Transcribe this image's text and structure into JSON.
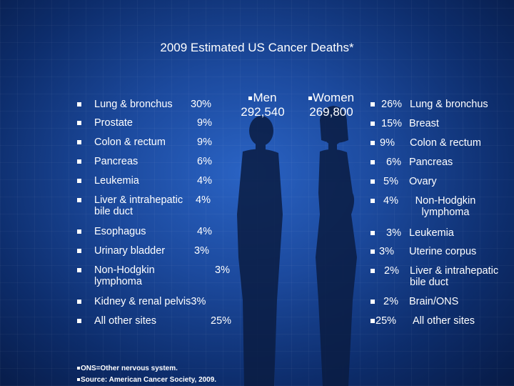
{
  "title": "2009 Estimated US Cancer Deaths*",
  "men": {
    "label": "Men",
    "total": "292,540",
    "rows": [
      {
        "site": "Lung & bronchus",
        "pct": "30%"
      },
      {
        "site": "Prostate",
        "pct": "9%"
      },
      {
        "site": "Colon & rectum",
        "pct": "9%"
      },
      {
        "site": "Pancreas",
        "pct": "6%"
      },
      {
        "site": "Leukemia",
        "pct": "4%"
      },
      {
        "site": "Liver & intrahepatic bile duct",
        "pct": "4%"
      },
      {
        "site": "Esophagus",
        "pct": "4%"
      },
      {
        "site": "Urinary bladder",
        "pct": "3%"
      },
      {
        "site": "Non-Hodgkin lymphoma",
        "pct": "3%"
      },
      {
        "site": "Kidney & renal pelvis",
        "pct": "3%"
      },
      {
        "site": "All other sites",
        "pct": "25%"
      }
    ]
  },
  "women": {
    "label": "Women",
    "total": "269,800",
    "rows": [
      {
        "pct": "26%",
        "site": "Lung & bronchus"
      },
      {
        "pct": "15%",
        "site": "Breast"
      },
      {
        "pct": "9%",
        "site": "Colon & rectum"
      },
      {
        "pct": "6%",
        "site": "Pancreas"
      },
      {
        "pct": "5%",
        "site": "Ovary"
      },
      {
        "pct": "4%",
        "site": "Non-Hodgkin lymphoma"
      },
      {
        "pct": "3%",
        "site": "Leukemia"
      },
      {
        "pct": "3%",
        "site": "Uterine corpus"
      },
      {
        "pct": "2%",
        "site": "Liver & intrahepatic bile duct"
      },
      {
        "pct": "2%",
        "site": "Brain/ONS"
      },
      {
        "pct": "25%",
        "site": "All other sites"
      }
    ]
  },
  "footnotes": [
    "ONS=Other nervous system.",
    "Source: American Cancer Society, 2009."
  ]
}
